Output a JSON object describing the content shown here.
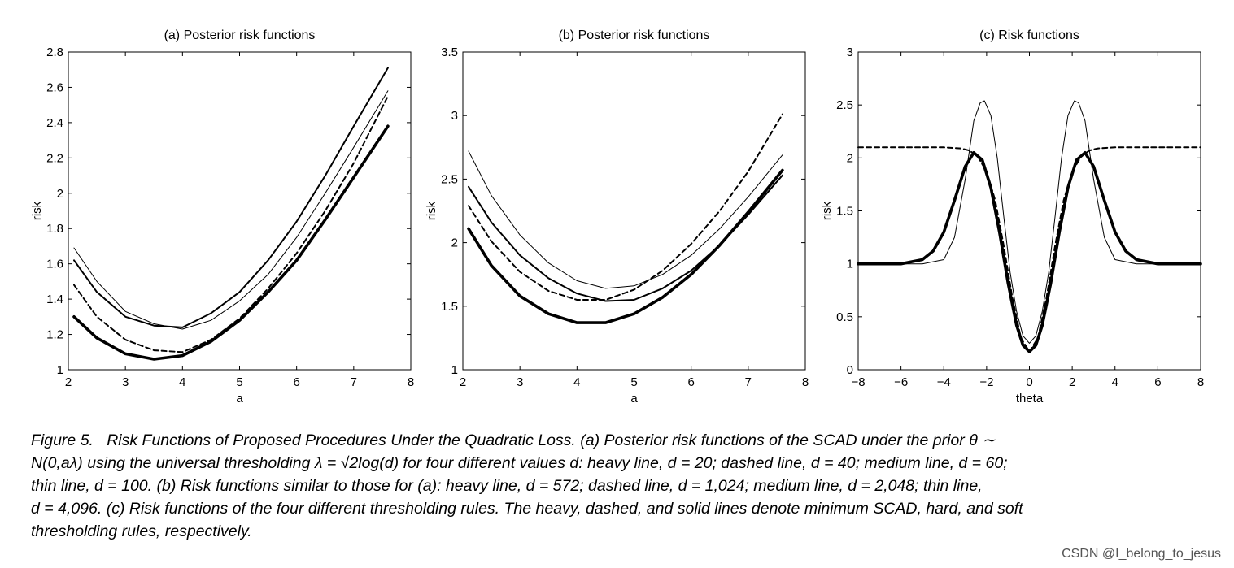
{
  "chart_data": [
    {
      "type": "line",
      "title": "(a) Posterior risk functions",
      "xlabel": "a",
      "ylabel": "risk",
      "xlim": [
        2,
        8
      ],
      "ylim": [
        1,
        2.8
      ],
      "xticks": [
        "2",
        "3",
        "4",
        "5",
        "6",
        "7",
        "8"
      ],
      "yticks": [
        "1",
        "1.2",
        "1.4",
        "1.6",
        "1.8",
        "2",
        "2.2",
        "2.4",
        "2.6",
        "2.8"
      ],
      "series": [
        {
          "style": "heavy",
          "x": [
            2.1,
            2.5,
            3.0,
            3.5,
            4.0,
            4.5,
            5.0,
            5.5,
            6.0,
            6.5,
            7.0,
            7.6
          ],
          "y": [
            1.3,
            1.18,
            1.09,
            1.06,
            1.08,
            1.16,
            1.28,
            1.44,
            1.62,
            1.85,
            2.09,
            2.38
          ]
        },
        {
          "style": "dashed",
          "x": [
            2.1,
            2.5,
            3.0,
            3.5,
            4.0,
            4.5,
            5.0,
            5.5,
            6.0,
            6.5,
            7.0,
            7.6
          ],
          "y": [
            1.48,
            1.3,
            1.17,
            1.11,
            1.1,
            1.17,
            1.29,
            1.46,
            1.66,
            1.9,
            2.17,
            2.55
          ]
        },
        {
          "style": "medium",
          "x": [
            2.1,
            2.5,
            3.0,
            3.5,
            4.0,
            4.5,
            5.0,
            5.5,
            6.0,
            6.5,
            7.0,
            7.6
          ],
          "y": [
            1.62,
            1.44,
            1.3,
            1.25,
            1.24,
            1.32,
            1.44,
            1.62,
            1.84,
            2.1,
            2.38,
            2.71
          ]
        },
        {
          "style": "thin",
          "x": [
            2.1,
            2.5,
            3.0,
            3.5,
            4.0,
            4.5,
            5.0,
            5.5,
            6.0,
            6.5,
            7.0,
            7.6
          ],
          "y": [
            1.69,
            1.5,
            1.33,
            1.26,
            1.23,
            1.28,
            1.39,
            1.54,
            1.75,
            2.0,
            2.26,
            2.58
          ]
        }
      ]
    },
    {
      "type": "line",
      "title": "(b) Posterior risk functions",
      "xlabel": "a",
      "ylabel": "risk",
      "xlim": [
        2,
        8
      ],
      "ylim": [
        1,
        3.5
      ],
      "xticks": [
        "2",
        "3",
        "4",
        "5",
        "6",
        "7",
        "8"
      ],
      "yticks": [
        "1",
        "1.5",
        "2",
        "2.5",
        "3",
        "3.5"
      ],
      "series": [
        {
          "style": "heavy",
          "x": [
            2.1,
            2.5,
            3.0,
            3.5,
            4.0,
            4.5,
            5.0,
            5.5,
            6.0,
            6.5,
            7.0,
            7.6
          ],
          "y": [
            2.11,
            1.82,
            1.58,
            1.44,
            1.37,
            1.37,
            1.44,
            1.57,
            1.75,
            1.98,
            2.24,
            2.57
          ]
        },
        {
          "style": "dashed",
          "x": [
            2.1,
            2.5,
            3.0,
            3.5,
            4.0,
            4.5,
            5.0,
            5.5,
            6.0,
            6.5,
            7.0,
            7.6
          ],
          "y": [
            2.29,
            2.01,
            1.77,
            1.62,
            1.55,
            1.55,
            1.63,
            1.78,
            1.99,
            2.25,
            2.56,
            3.01
          ]
        },
        {
          "style": "medium",
          "x": [
            2.1,
            2.5,
            3.0,
            3.5,
            4.0,
            4.5,
            5.0,
            5.5,
            6.0,
            6.5,
            7.0,
            7.6
          ],
          "y": [
            2.44,
            2.16,
            1.9,
            1.72,
            1.6,
            1.54,
            1.55,
            1.64,
            1.78,
            1.98,
            2.22,
            2.53
          ]
        },
        {
          "style": "thin",
          "x": [
            2.1,
            2.5,
            3.0,
            3.5,
            4.0,
            4.5,
            5.0,
            5.5,
            6.0,
            6.5,
            7.0,
            7.6
          ],
          "y": [
            2.72,
            2.37,
            2.06,
            1.84,
            1.7,
            1.64,
            1.66,
            1.75,
            1.9,
            2.11,
            2.36,
            2.69
          ]
        }
      ]
    },
    {
      "type": "line",
      "title": "(c) Risk functions",
      "xlabel": "theta",
      "ylabel": "risk",
      "xlim": [
        -8,
        8
      ],
      "ylim": [
        0,
        3
      ],
      "xticks": [
        "-8",
        "-6",
        "-4",
        "-2",
        "0",
        "2",
        "4",
        "6",
        "8"
      ],
      "yticks": [
        "0",
        "0.5",
        "1",
        "1.5",
        "2",
        "2.5",
        "3"
      ],
      "series": [
        {
          "style": "heavy",
          "x": [
            -8,
            -6,
            -5,
            -4.5,
            -4,
            -3.5,
            -3,
            -2.6,
            -2.2,
            -1.8,
            -1.4,
            -1,
            -0.6,
            -0.3,
            0,
            0.3,
            0.6,
            1,
            1.4,
            1.8,
            2.2,
            2.6,
            3,
            3.5,
            4,
            4.5,
            5,
            6,
            8
          ],
          "y": [
            1.0,
            1.0,
            1.04,
            1.12,
            1.3,
            1.6,
            1.92,
            2.05,
            1.98,
            1.72,
            1.3,
            0.82,
            0.42,
            0.23,
            0.17,
            0.23,
            0.42,
            0.82,
            1.3,
            1.72,
            1.98,
            2.05,
            1.92,
            1.6,
            1.3,
            1.12,
            1.04,
            1.0,
            1.0
          ]
        },
        {
          "style": "dashed",
          "x": [
            -8,
            -4,
            -3.2,
            -2.8,
            -2.4,
            -2,
            -1.6,
            -1.2,
            -0.8,
            -0.4,
            0,
            0.4,
            0.8,
            1.2,
            1.6,
            2,
            2.4,
            2.8,
            3.2,
            4,
            8
          ],
          "y": [
            2.1,
            2.1,
            2.09,
            2.07,
            2.01,
            1.87,
            1.6,
            1.17,
            0.68,
            0.3,
            0.17,
            0.3,
            0.68,
            1.17,
            1.6,
            1.87,
            2.01,
            2.07,
            2.09,
            2.1,
            2.1
          ]
        },
        {
          "style": "thin",
          "x": [
            -8,
            -5,
            -4,
            -3.5,
            -3,
            -2.6,
            -2.3,
            -2.1,
            -1.8,
            -1.5,
            -1.2,
            -0.9,
            -0.6,
            -0.3,
            0,
            0.3,
            0.6,
            0.9,
            1.2,
            1.5,
            1.8,
            2.1,
            2.3,
            2.6,
            3,
            3.5,
            4,
            5,
            8
          ],
          "y": [
            1.0,
            1.0,
            1.04,
            1.25,
            1.8,
            2.35,
            2.52,
            2.54,
            2.4,
            2.0,
            1.45,
            0.92,
            0.55,
            0.32,
            0.25,
            0.32,
            0.55,
            0.92,
            1.45,
            2.0,
            2.4,
            2.54,
            2.52,
            2.35,
            1.8,
            1.25,
            1.04,
            1.0,
            1.0
          ]
        }
      ]
    }
  ],
  "caption": {
    "figure_label": "Figure 5.",
    "line1": "Risk Functions of Proposed Procedures Under the Quadratic Loss. (a) Posterior risk functions of the SCAD under the prior θ ∼",
    "line2": "N(0,aλ) using the universal thresholding λ = √2log(d) for four different values d: heavy line, d = 20; dashed line, d = 40; medium line, d = 60;",
    "line3": "thin line, d = 100. (b) Risk functions similar to those for (a): heavy line, d = 572; dashed line, d = 1,024; medium line, d = 2,048; thin line,",
    "line4": "d = 4,096. (c) Risk functions of the four different thresholding rules. The heavy, dashed, and solid lines denote minimum SCAD, hard, and soft",
    "line5": "thresholding rules, respectively."
  },
  "watermark": "CSDN @I_belong_to_jesus"
}
